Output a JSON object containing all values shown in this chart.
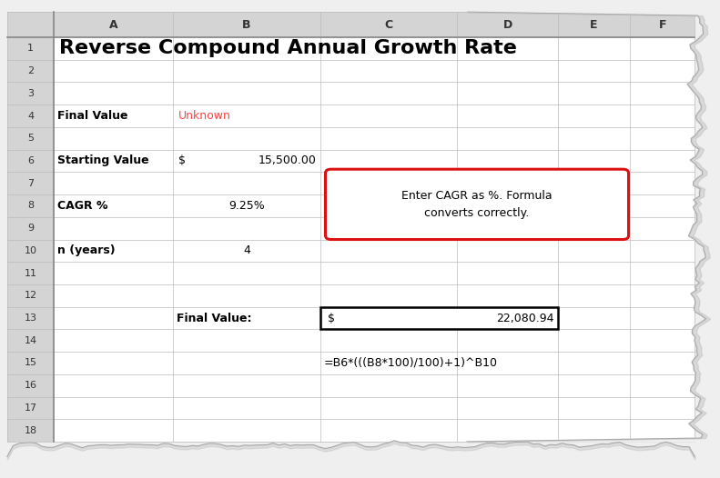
{
  "title": "Reverse Compound Annual Growth Rate",
  "col_labels": [
    "A",
    "B",
    "C",
    "D",
    "E",
    "F"
  ],
  "row_count": 18,
  "cell_A1": "Reverse Compound Annual Growth Rate",
  "cell_A4": "Final Value",
  "cell_B4": "Unknown",
  "cell_B4_color": "#FF4444",
  "cell_A6": "Starting Value",
  "cell_B6_dollar": "$",
  "cell_B6_val": "15,500.00",
  "cell_A8": "CAGR %",
  "cell_B8": "9.25%",
  "cell_A10": "n (years)",
  "cell_B10": "4",
  "cell_B13": "Final Value:",
  "cell_C13": "$",
  "cell_D13": "22,080.94",
  "cell_C15": "=B6*(((B8*100)/100)+1)^B10",
  "annotation_text": "Enter CAGR as %. Formula\nconverts correctly.",
  "grid_color": "#BBBBBB",
  "header_bg": "#D4D4D4",
  "cell_bg": "#FFFFFF",
  "fig_bg": "#EFEFEF"
}
